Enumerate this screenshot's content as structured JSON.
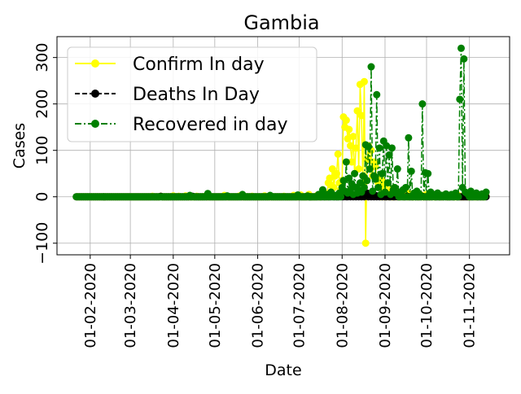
{
  "chart_data": {
    "type": "line",
    "title": "Gambia",
    "xlabel": "Date",
    "ylabel": "Cases",
    "x_range": [
      "2020-01-08",
      "2020-11-30"
    ],
    "ylim": [
      -125,
      345
    ],
    "x_ticks": [
      {
        "date": "2020-02-01",
        "label": "01-02-2020"
      },
      {
        "date": "2020-03-01",
        "label": "01-03-2020"
      },
      {
        "date": "2020-04-01",
        "label": "01-04-2020"
      },
      {
        "date": "2020-05-01",
        "label": "01-05-2020"
      },
      {
        "date": "2020-06-01",
        "label": "01-06-2020"
      },
      {
        "date": "2020-07-01",
        "label": "01-07-2020"
      },
      {
        "date": "2020-08-01",
        "label": "01-08-2020"
      },
      {
        "date": "2020-09-01",
        "label": "01-09-2020"
      },
      {
        "date": "2020-10-01",
        "label": "01-10-2020"
      },
      {
        "date": "2020-11-01",
        "label": "01-11-2020"
      }
    ],
    "y_ticks": [
      -100,
      0,
      100,
      200,
      300
    ],
    "y_tick_labels": [
      "−100",
      "0",
      "100",
      "200",
      "300"
    ],
    "grid": true,
    "legend_position": "upper-left",
    "start_date": "2020-01-22",
    "end_date": "2020-11-13",
    "series": [
      {
        "name": "Confirm In day",
        "color": "#ffff00",
        "linestyle": "solid",
        "marker": "circle",
        "points": [
          [
            "2020-03-17",
            1
          ],
          [
            "2020-03-23",
            1
          ],
          [
            "2020-04-01",
            2
          ],
          [
            "2020-04-05",
            1
          ],
          [
            "2020-04-10",
            2
          ],
          [
            "2020-04-18",
            1
          ],
          [
            "2020-04-24",
            1
          ],
          [
            "2020-05-08",
            3
          ],
          [
            "2020-05-19",
            2
          ],
          [
            "2020-05-28",
            1
          ],
          [
            "2020-06-06",
            2
          ],
          [
            "2020-06-20",
            1
          ],
          [
            "2020-06-27",
            3
          ],
          [
            "2020-07-02",
            4
          ],
          [
            "2020-07-08",
            5
          ],
          [
            "2020-07-14",
            3
          ],
          [
            "2020-07-18",
            10
          ],
          [
            "2020-07-20",
            7
          ],
          [
            "2020-07-22",
            30
          ],
          [
            "2020-07-23",
            40
          ],
          [
            "2020-07-24",
            25
          ],
          [
            "2020-07-25",
            60
          ],
          [
            "2020-07-26",
            20
          ],
          [
            "2020-07-27",
            45
          ],
          [
            "2020-07-28",
            50
          ],
          [
            "2020-07-29",
            92
          ],
          [
            "2020-07-30",
            30
          ],
          [
            "2020-07-31",
            15
          ],
          [
            "2020-08-01",
            35
          ],
          [
            "2020-08-02",
            172
          ],
          [
            "2020-08-03",
            150
          ],
          [
            "2020-08-04",
            165
          ],
          [
            "2020-08-05",
            125
          ],
          [
            "2020-08-06",
            145
          ],
          [
            "2020-08-07",
            110
          ],
          [
            "2020-08-08",
            75
          ],
          [
            "2020-08-09",
            130
          ],
          [
            "2020-08-10",
            50
          ],
          [
            "2020-08-11",
            105
          ],
          [
            "2020-08-12",
            185
          ],
          [
            "2020-08-13",
            60
          ],
          [
            "2020-08-14",
            242
          ],
          [
            "2020-08-15",
            175
          ],
          [
            "2020-08-16",
            30
          ],
          [
            "2020-08-17",
            248
          ],
          [
            "2020-08-18",
            -100
          ],
          [
            "2020-08-19",
            80
          ],
          [
            "2020-08-20",
            110
          ],
          [
            "2020-08-21",
            60
          ],
          [
            "2020-08-22",
            100
          ],
          [
            "2020-08-23",
            45
          ],
          [
            "2020-08-24",
            75
          ],
          [
            "2020-08-25",
            65
          ],
          [
            "2020-08-26",
            40
          ],
          [
            "2020-08-27",
            30
          ],
          [
            "2020-08-28",
            20
          ],
          [
            "2020-08-30",
            35
          ],
          [
            "2020-09-01",
            25
          ],
          [
            "2020-09-03",
            10
          ],
          [
            "2020-09-05",
            15
          ],
          [
            "2020-09-08",
            20
          ],
          [
            "2020-09-10",
            8
          ],
          [
            "2020-09-13",
            5
          ],
          [
            "2020-09-16",
            12
          ],
          [
            "2020-09-19",
            6
          ],
          [
            "2020-09-23",
            8
          ],
          [
            "2020-09-27",
            4
          ],
          [
            "2020-10-01",
            5
          ],
          [
            "2020-10-05",
            3
          ],
          [
            "2020-10-09",
            2
          ],
          [
            "2020-10-14",
            4
          ],
          [
            "2020-10-19",
            2
          ],
          [
            "2020-10-24",
            3
          ],
          [
            "2020-10-29",
            2
          ],
          [
            "2020-11-03",
            3
          ],
          [
            "2020-11-08",
            2
          ],
          [
            "2020-11-13",
            1
          ]
        ]
      },
      {
        "name": "Deaths In Day",
        "color": "#000000",
        "linestyle": "dashed",
        "marker": "circle",
        "points": [
          [
            "2020-03-23",
            1
          ],
          [
            "2020-04-15",
            1
          ],
          [
            "2020-07-25",
            1
          ],
          [
            "2020-07-31",
            2
          ],
          [
            "2020-08-03",
            3
          ],
          [
            "2020-08-06",
            1
          ],
          [
            "2020-08-08",
            4
          ],
          [
            "2020-08-10",
            2
          ],
          [
            "2020-08-12",
            3
          ],
          [
            "2020-08-14",
            5
          ],
          [
            "2020-08-16",
            2
          ],
          [
            "2020-08-18",
            3
          ],
          [
            "2020-08-19",
            8
          ],
          [
            "2020-08-21",
            4
          ],
          [
            "2020-08-23",
            6
          ],
          [
            "2020-08-25",
            3
          ],
          [
            "2020-08-27",
            2
          ],
          [
            "2020-08-29",
            4
          ],
          [
            "2020-08-31",
            2
          ],
          [
            "2020-09-03",
            3
          ],
          [
            "2020-09-06",
            2
          ],
          [
            "2020-09-09",
            1
          ],
          [
            "2020-09-13",
            2
          ],
          [
            "2020-09-17",
            1
          ],
          [
            "2020-09-22",
            1
          ],
          [
            "2020-09-28",
            1
          ],
          [
            "2020-10-06",
            1
          ],
          [
            "2020-10-14",
            2
          ],
          [
            "2020-10-22",
            1
          ],
          [
            "2020-11-05",
            1
          ],
          [
            "2020-11-12",
            1
          ]
        ]
      },
      {
        "name": "Recovered in day",
        "color": "#008000",
        "linestyle": "dashdot",
        "marker": "circle",
        "points": [
          [
            "2020-04-13",
            3
          ],
          [
            "2020-04-26",
            7
          ],
          [
            "2020-05-10",
            2
          ],
          [
            "2020-05-21",
            5
          ],
          [
            "2020-06-10",
            3
          ],
          [
            "2020-06-30",
            4
          ],
          [
            "2020-07-07",
            2
          ],
          [
            "2020-07-15",
            5
          ],
          [
            "2020-07-18",
            15
          ],
          [
            "2020-07-21",
            5
          ],
          [
            "2020-07-24",
            10
          ],
          [
            "2020-07-27",
            3
          ],
          [
            "2020-07-30",
            8
          ],
          [
            "2020-08-01",
            20
          ],
          [
            "2020-08-02",
            35
          ],
          [
            "2020-08-03",
            12
          ],
          [
            "2020-08-04",
            75
          ],
          [
            "2020-08-05",
            8
          ],
          [
            "2020-08-06",
            40
          ],
          [
            "2020-08-07",
            15
          ],
          [
            "2020-08-08",
            28
          ],
          [
            "2020-08-09",
            5
          ],
          [
            "2020-08-10",
            50
          ],
          [
            "2020-08-11",
            20
          ],
          [
            "2020-08-12",
            8
          ],
          [
            "2020-08-13",
            15
          ],
          [
            "2020-08-14",
            30
          ],
          [
            "2020-08-15",
            10
          ],
          [
            "2020-08-16",
            45
          ],
          [
            "2020-08-17",
            20
          ],
          [
            "2020-08-18",
            112
          ],
          [
            "2020-08-19",
            35
          ],
          [
            "2020-08-20",
            108
          ],
          [
            "2020-08-21",
            60
          ],
          [
            "2020-08-22",
            280
          ],
          [
            "2020-08-23",
            12
          ],
          [
            "2020-08-24",
            45
          ],
          [
            "2020-08-25",
            38
          ],
          [
            "2020-08-26",
            220
          ],
          [
            "2020-08-27",
            20
          ],
          [
            "2020-08-28",
            105
          ],
          [
            "2020-08-29",
            5
          ],
          [
            "2020-08-30",
            50
          ],
          [
            "2020-08-31",
            120
          ],
          [
            "2020-09-01",
            10
          ],
          [
            "2020-09-02",
            110
          ],
          [
            "2020-09-03",
            30
          ],
          [
            "2020-09-04",
            90
          ],
          [
            "2020-09-05",
            5
          ],
          [
            "2020-09-06",
            105
          ],
          [
            "2020-09-07",
            15
          ],
          [
            "2020-09-08",
            20
          ],
          [
            "2020-09-09",
            8
          ],
          [
            "2020-09-10",
            60
          ],
          [
            "2020-09-12",
            10
          ],
          [
            "2020-09-14",
            15
          ],
          [
            "2020-09-16",
            20
          ],
          [
            "2020-09-18",
            127
          ],
          [
            "2020-09-20",
            55
          ],
          [
            "2020-09-22",
            8
          ],
          [
            "2020-09-24",
            12
          ],
          [
            "2020-09-26",
            5
          ],
          [
            "2020-09-28",
            200
          ],
          [
            "2020-09-30",
            52
          ],
          [
            "2020-10-02",
            50
          ],
          [
            "2020-10-04",
            10
          ],
          [
            "2020-10-06",
            5
          ],
          [
            "2020-10-09",
            8
          ],
          [
            "2020-10-12",
            3
          ],
          [
            "2020-10-15",
            6
          ],
          [
            "2020-10-19",
            5
          ],
          [
            "2020-10-22",
            8
          ],
          [
            "2020-10-25",
            210
          ],
          [
            "2020-10-26",
            320
          ],
          [
            "2020-10-27",
            20
          ],
          [
            "2020-10-28",
            297
          ],
          [
            "2020-10-29",
            10
          ],
          [
            "2020-10-30",
            8
          ],
          [
            "2020-10-31",
            5
          ],
          [
            "2020-11-02",
            12
          ],
          [
            "2020-11-04",
            3
          ],
          [
            "2020-11-06",
            8
          ],
          [
            "2020-11-08",
            4
          ],
          [
            "2020-11-10",
            6
          ],
          [
            "2020-11-13",
            10
          ]
        ]
      }
    ]
  }
}
